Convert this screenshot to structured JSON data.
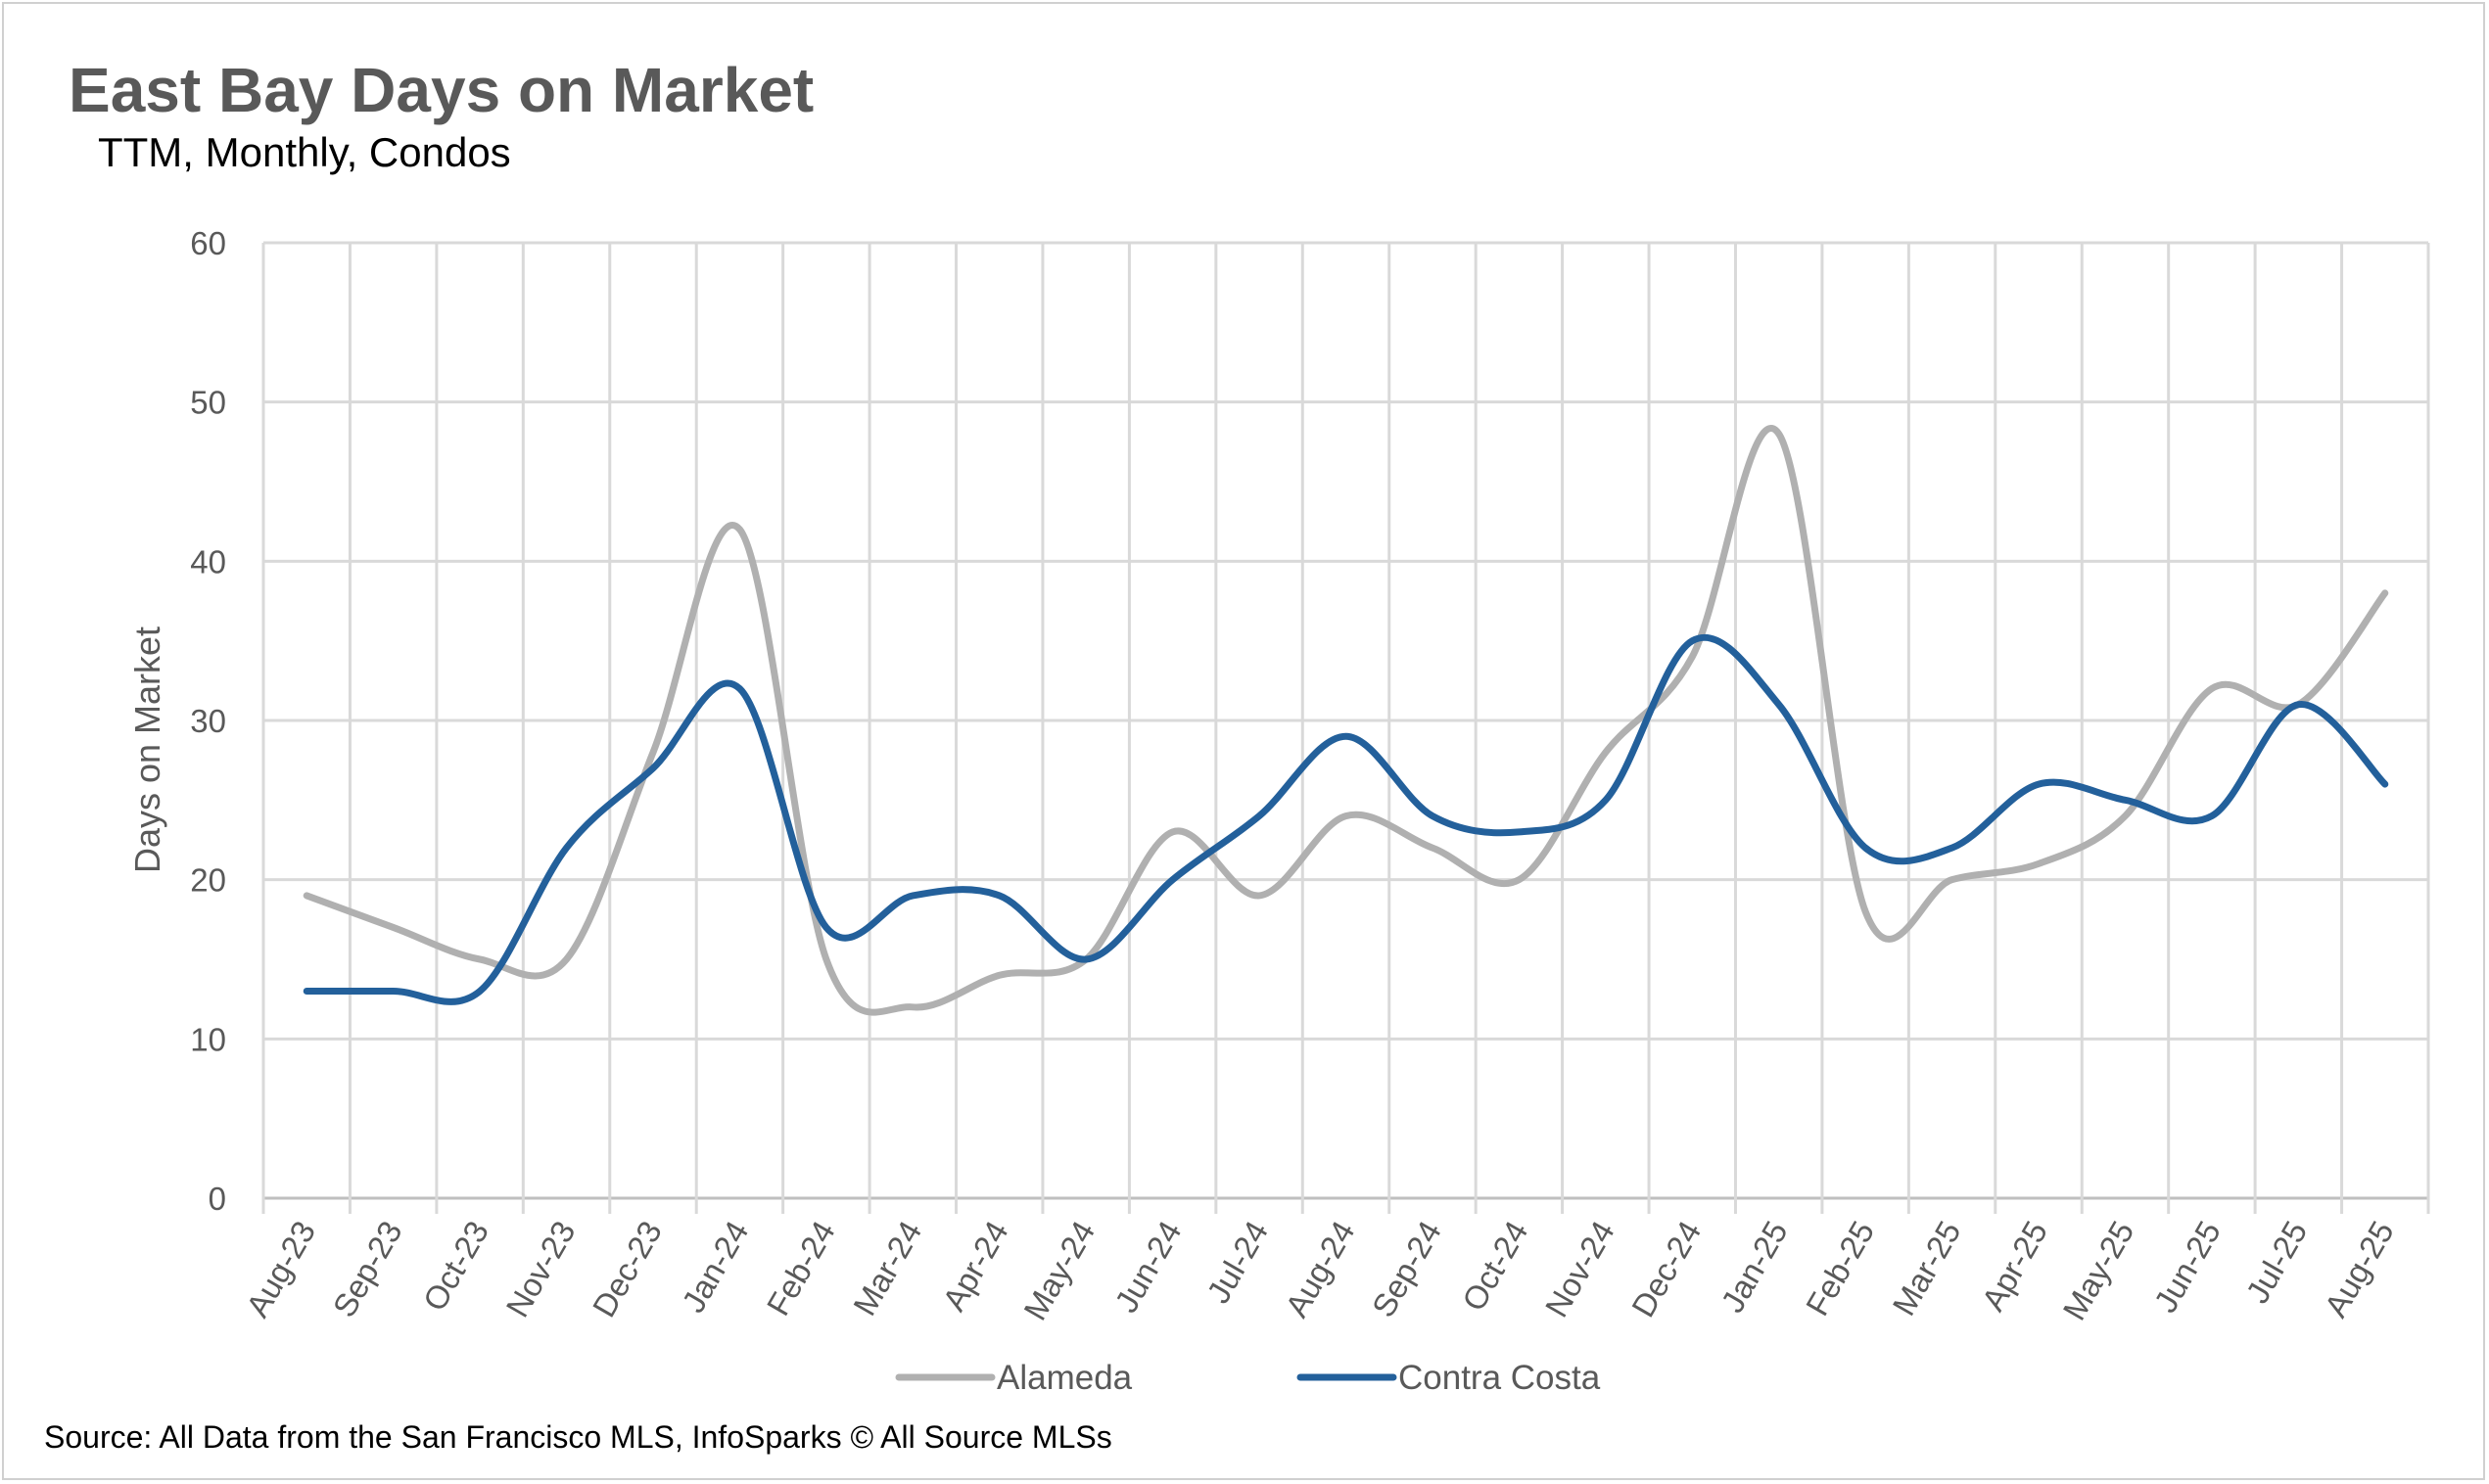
{
  "chart_data": {
    "type": "line",
    "title": "East Bay Days on Market",
    "subtitle": "TTM, Monthly, Condos",
    "xlabel": "",
    "ylabel": "Days on Market",
    "ylim": [
      0,
      60
    ],
    "yticks": [
      "0",
      "10",
      "20",
      "30",
      "40",
      "50",
      "60"
    ],
    "grid": true,
    "legend_position": "bottom",
    "categories": [
      "Aug-23",
      "Sep-23",
      "Oct-23",
      "Nov-23",
      "Dec-23",
      "Jan-24",
      "Feb-24",
      "Mar-24",
      "Apr-24",
      "May-24",
      "Jun-24",
      "Jul-24",
      "Aug-24",
      "Sep-24",
      "Oct-24",
      "Nov-24",
      "Dec-24",
      "Jan-25",
      "Feb-25",
      "Mar-25",
      "Apr-25",
      "May-25",
      "Jun-25",
      "Jul-25",
      "Aug-25"
    ],
    "series": [
      {
        "name": "Alameda",
        "color": "#b0b0b0",
        "values": [
          19,
          17,
          15,
          15,
          28,
          42,
          15,
          12,
          14,
          15,
          23,
          19,
          24,
          22,
          20,
          28,
          34,
          48,
          18,
          20,
          21,
          24,
          32,
          31,
          38
        ]
      },
      {
        "name": "Contra Costa",
        "color": "#23609b",
        "values": [
          13,
          13,
          13,
          22,
          27,
          32,
          17,
          19,
          19,
          15,
          20,
          24,
          29,
          24,
          23,
          25,
          35,
          31,
          22,
          22,
          26,
          25,
          24,
          31,
          26
        ]
      }
    ]
  },
  "source": "Source: All Data from the San Francisco MLS, InfoSparks © All Source MLSs"
}
